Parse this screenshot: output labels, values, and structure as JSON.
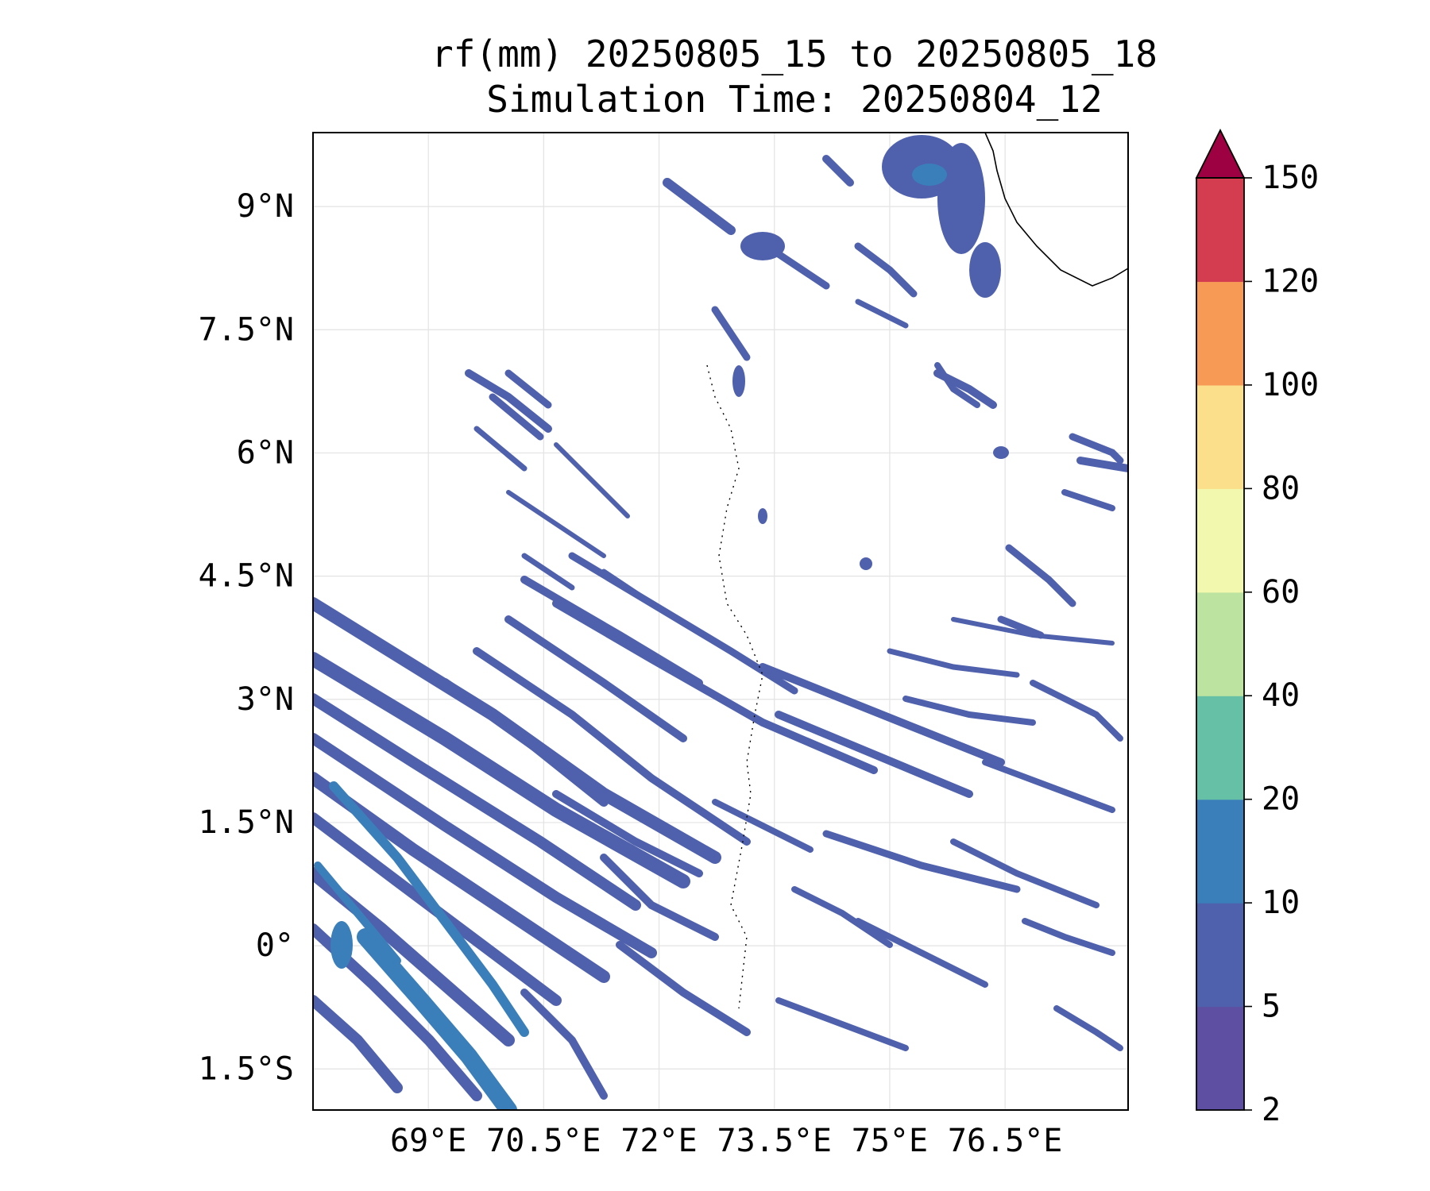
{
  "title": {
    "line1": "rf(mm) 20250805_15 to 20250805_18",
    "line2": "Simulation Time: 20250804_12"
  },
  "map": {
    "lon_range": [
      67.5,
      78.1
    ],
    "lat_range": [
      -2.0,
      9.9
    ],
    "lon_ticks": [
      {
        "value": 69,
        "label": "69°E"
      },
      {
        "value": 70.5,
        "label": "70.5°E"
      },
      {
        "value": 72,
        "label": "72°E"
      },
      {
        "value": 73.5,
        "label": "73.5°E"
      },
      {
        "value": 75,
        "label": "75°E"
      },
      {
        "value": 76.5,
        "label": "76.5°E"
      }
    ],
    "lat_ticks": [
      {
        "value": 9,
        "label": "9°N"
      },
      {
        "value": 7.5,
        "label": "7.5°N"
      },
      {
        "value": 6,
        "label": "6°N"
      },
      {
        "value": 4.5,
        "label": "4.5°N"
      },
      {
        "value": 3,
        "label": "3°N"
      },
      {
        "value": 1.5,
        "label": "1.5°N"
      },
      {
        "value": 0,
        "label": "0°"
      },
      {
        "value": -1.5,
        "label": "1.5°S"
      }
    ],
    "gridlines": true
  },
  "colorbar": {
    "extend": "max",
    "levels": [
      {
        "value": 2,
        "label": "2"
      },
      {
        "value": 5,
        "label": "5"
      },
      {
        "value": 10,
        "label": "10"
      },
      {
        "value": 20,
        "label": "20"
      },
      {
        "value": 40,
        "label": "40"
      },
      {
        "value": 60,
        "label": "60"
      },
      {
        "value": 80,
        "label": "80"
      },
      {
        "value": 100,
        "label": "100"
      },
      {
        "value": 120,
        "label": "120"
      },
      {
        "value": 150,
        "label": "150"
      }
    ],
    "colors": [
      "#5e4fa2",
      "#4f61ac",
      "#3a7fb9",
      "#65c0a6",
      "#bde3a0",
      "#f2f9ae",
      "#fbdf8a",
      "#f69a56",
      "#d43d4f",
      "#9e0142"
    ]
  }
}
